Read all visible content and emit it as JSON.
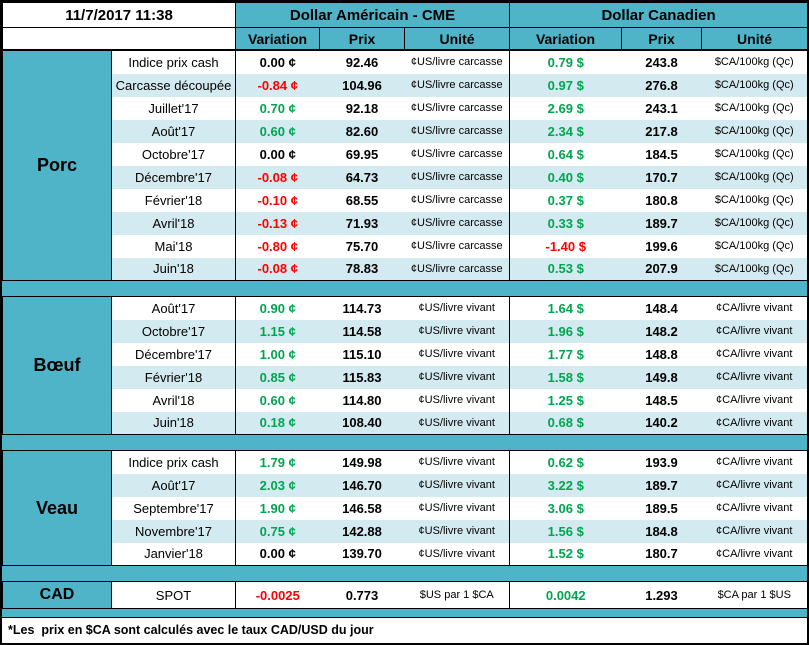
{
  "colors": {
    "teal": "#50B4C8",
    "row_alt": "#D4EAF1",
    "green": "#00A550",
    "red": "#FF0000",
    "text": "#000000"
  },
  "header": {
    "timestamp": "11/7/2017 11:38",
    "usd_title": "Dollar Américain - CME",
    "cad_title": "Dollar Canadien",
    "columns": {
      "variation": "Variation",
      "prix": "Prix",
      "unite": "Unité"
    }
  },
  "sections": [
    {
      "id": "porc",
      "name": "Porc",
      "us_unit": "¢US/livre carcasse",
      "cad_unit": "$CA/100kg (Qc)",
      "rows": [
        {
          "label": "Indice prix cash",
          "us_var": "0.00 ¢",
          "us_prix": "92.46",
          "cad_var": "0.79 $",
          "cad_prix": "243.8"
        },
        {
          "label": "Carcasse découpée",
          "us_var": "-0.84 ¢",
          "us_prix": "104.96",
          "cad_var": "0.97 $",
          "cad_prix": "276.8"
        },
        {
          "label": "Juillet'17",
          "us_var": "0.70 ¢",
          "us_prix": "92.18",
          "cad_var": "2.69 $",
          "cad_prix": "243.1"
        },
        {
          "label": "Août'17",
          "us_var": "0.60 ¢",
          "us_prix": "82.60",
          "cad_var": "2.34 $",
          "cad_prix": "217.8"
        },
        {
          "label": "Octobre'17",
          "us_var": "0.00 ¢",
          "us_prix": "69.95",
          "cad_var": "0.64 $",
          "cad_prix": "184.5"
        },
        {
          "label": "Décembre'17",
          "us_var": "-0.08 ¢",
          "us_prix": "64.73",
          "cad_var": "0.40 $",
          "cad_prix": "170.7"
        },
        {
          "label": "Février'18",
          "us_var": "-0.10 ¢",
          "us_prix": "68.55",
          "cad_var": "0.37 $",
          "cad_prix": "180.8"
        },
        {
          "label": "Avril'18",
          "us_var": "-0.13 ¢",
          "us_prix": "71.93",
          "cad_var": "0.33 $",
          "cad_prix": "189.7"
        },
        {
          "label": "Mai'18",
          "us_var": "-0.80 ¢",
          "us_prix": "75.70",
          "cad_var": "-1.40 $",
          "cad_prix": "199.6"
        },
        {
          "label": "Juin'18",
          "us_var": "-0.08 ¢",
          "us_prix": "78.83",
          "cad_var": "0.53 $",
          "cad_prix": "207.9"
        }
      ]
    },
    {
      "id": "boeuf",
      "name": "Bœuf",
      "us_unit": "¢US/livre vivant",
      "cad_unit": "¢CA/livre vivant",
      "rows": [
        {
          "label": "Août'17",
          "us_var": "0.90 ¢",
          "us_prix": "114.73",
          "cad_var": "1.64 $",
          "cad_prix": "148.4"
        },
        {
          "label": "Octobre'17",
          "us_var": "1.15 ¢",
          "us_prix": "114.58",
          "cad_var": "1.96 $",
          "cad_prix": "148.2"
        },
        {
          "label": "Décembre'17",
          "us_var": "1.00 ¢",
          "us_prix": "115.10",
          "cad_var": "1.77 $",
          "cad_prix": "148.8"
        },
        {
          "label": "Février'18",
          "us_var": "0.85 ¢",
          "us_prix": "115.83",
          "cad_var": "1.58 $",
          "cad_prix": "149.8"
        },
        {
          "label": "Avril'18",
          "us_var": "0.60 ¢",
          "us_prix": "114.80",
          "cad_var": "1.25 $",
          "cad_prix": "148.5"
        },
        {
          "label": "Juin'18",
          "us_var": "0.18 ¢",
          "us_prix": "108.40",
          "cad_var": "0.68 $",
          "cad_prix": "140.2"
        }
      ]
    },
    {
      "id": "veau",
      "name": "Veau",
      "us_unit": "¢US/livre vivant",
      "cad_unit": "¢CA/livre vivant",
      "rows": [
        {
          "label": "Indice prix cash",
          "us_var": "1.79 ¢",
          "us_prix": "149.98",
          "cad_var": "0.62 $",
          "cad_prix": "193.9"
        },
        {
          "label": "Août'17",
          "us_var": "2.03 ¢",
          "us_prix": "146.70",
          "cad_var": "3.22 $",
          "cad_prix": "189.7"
        },
        {
          "label": "Septembre'17",
          "us_var": "1.90 ¢",
          "us_prix": "146.58",
          "cad_var": "3.06 $",
          "cad_prix": "189.5"
        },
        {
          "label": "Novembre'17",
          "us_var": "0.75 ¢",
          "us_prix": "142.88",
          "cad_var": "1.56 $",
          "cad_prix": "184.8"
        },
        {
          "label": "Janvier'18",
          "us_var": "0.00 ¢",
          "us_prix": "139.70",
          "cad_var": "1.52 $",
          "cad_prix": "180.7"
        }
      ]
    },
    {
      "id": "cad",
      "name": "CAD",
      "us_unit": "$US par 1 $CA",
      "cad_unit": "$CA par 1 $US",
      "rows": [
        {
          "label": "SPOT",
          "us_var": "-0.0025",
          "us_prix": "0.773",
          "cad_var": "0.0042",
          "cad_prix": "1.293"
        }
      ]
    }
  ],
  "footnote": "*Les  prix en $CA sont calculés avec le taux CAD/USD du jour"
}
